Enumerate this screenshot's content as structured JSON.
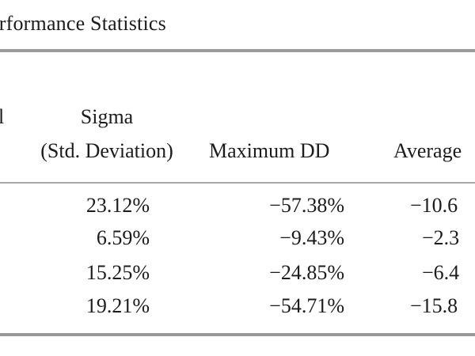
{
  "title": "erformance Statistics",
  "header": {
    "cut_fragment": "l",
    "sigma_line1": "Sigma",
    "sigma_line2": "(Std. Deviation)",
    "maxdd": "Maximum DD",
    "average": "Average"
  },
  "rows": [
    {
      "sigma": "23.12%",
      "maxdd": "−57.38%",
      "avg": "−10.6"
    },
    {
      "sigma": "6.59%",
      "maxdd": "−9.43%",
      "avg": "−2.3"
    },
    {
      "sigma": "15.25%",
      "maxdd": "−24.85%",
      "avg": "−6.4"
    },
    {
      "sigma": "19.21%",
      "maxdd": "−54.71%",
      "avg": "−15.8"
    }
  ]
}
